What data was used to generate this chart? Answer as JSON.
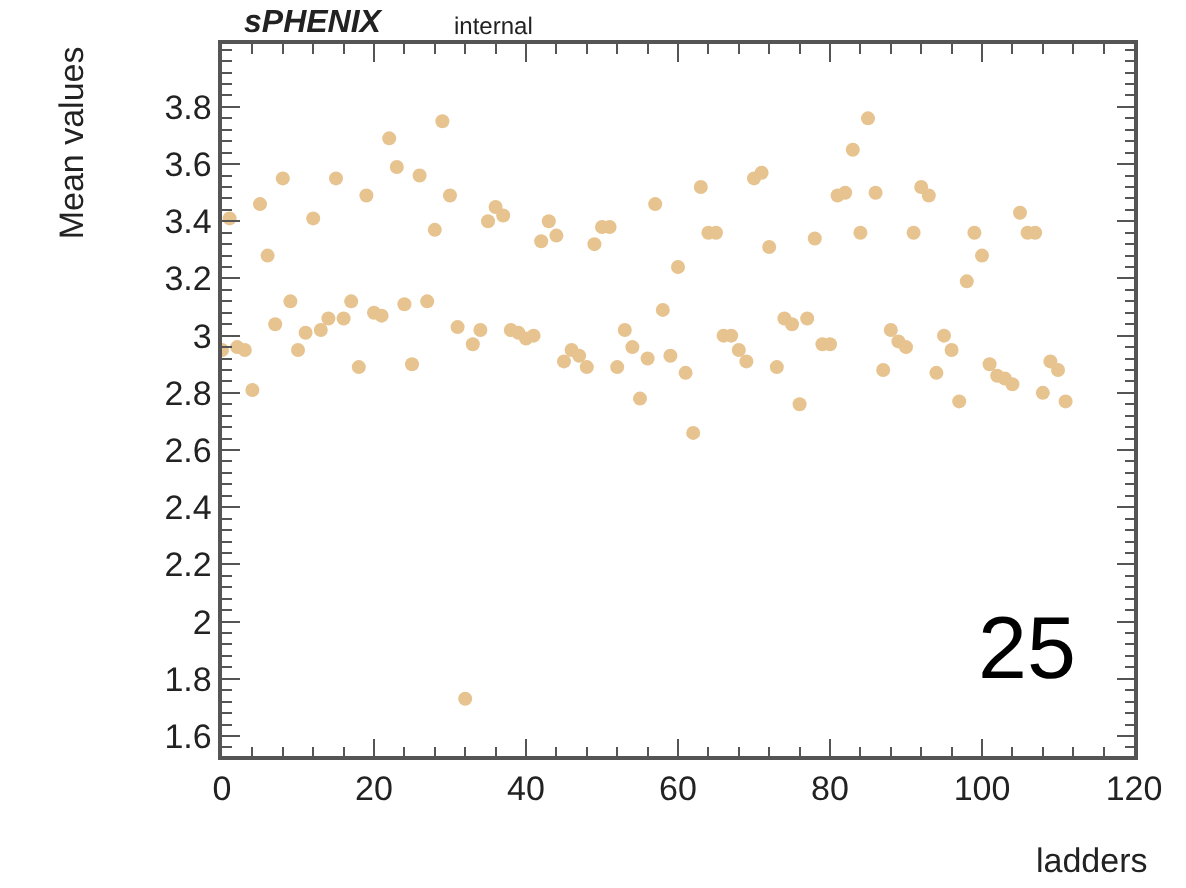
{
  "chart_data": {
    "type": "scatter",
    "title": "sPHENIX",
    "subtitle": "internal",
    "xlabel": "ladders",
    "ylabel": "Mean values",
    "annotations": [
      "25"
    ],
    "x": [
      0,
      1,
      2,
      3,
      4,
      5,
      6,
      7,
      8,
      9,
      10,
      11,
      12,
      13,
      14,
      15,
      16,
      17,
      18,
      19,
      20,
      21,
      22,
      23,
      24,
      25,
      26,
      27,
      28,
      29,
      30,
      31,
      32,
      33,
      34,
      35,
      36,
      37,
      38,
      39,
      40,
      41,
      42,
      43,
      44,
      45,
      46,
      47,
      48,
      49,
      50,
      51,
      52,
      53,
      54,
      55,
      56,
      57,
      58,
      59,
      60,
      61,
      62,
      63,
      64,
      65,
      66,
      67,
      68,
      69,
      70,
      71,
      72,
      73,
      74,
      75,
      76,
      77,
      78,
      79,
      80,
      81,
      82,
      83,
      84,
      85,
      86,
      87,
      88,
      89,
      90,
      91,
      92,
      93,
      94,
      95,
      96,
      97,
      98,
      99,
      100,
      101,
      102,
      103,
      104,
      105,
      106,
      107,
      108,
      109,
      110,
      111
    ],
    "series": [
      {
        "color": "#e6c38f",
        "values": [
          2.95,
          3.41,
          2.96,
          2.95,
          2.81,
          3.46,
          3.28,
          3.04,
          3.55,
          3.12,
          2.95,
          3.01,
          3.41,
          3.02,
          3.06,
          3.55,
          3.06,
          3.12,
          2.89,
          3.49,
          3.08,
          3.07,
          3.69,
          3.59,
          3.11,
          2.9,
          3.56,
          3.12,
          3.37,
          3.75,
          3.49,
          3.03,
          1.73,
          2.97,
          3.02,
          3.4,
          3.45,
          3.42,
          3.02,
          3.01,
          2.99,
          3.0,
          3.33,
          3.4,
          3.35,
          2.91,
          2.95,
          2.93,
          2.89,
          3.32,
          3.38,
          3.38,
          2.89,
          3.02,
          2.96,
          2.78,
          2.92,
          3.46,
          3.09,
          2.93,
          3.24,
          2.87,
          2.66,
          3.52,
          3.36,
          3.36,
          3.0,
          3.0,
          2.95,
          2.91,
          3.55,
          3.57,
          3.31,
          2.89,
          3.06,
          3.04,
          2.76,
          3.06,
          3.34,
          2.97,
          2.97,
          3.49,
          3.5,
          3.65,
          3.36,
          3.76,
          3.5,
          2.88,
          3.02,
          2.98,
          2.96,
          3.36,
          3.52,
          3.49,
          2.87,
          3.0,
          2.95,
          2.77,
          3.19,
          3.36,
          3.28,
          2.9,
          2.86,
          2.85,
          2.83,
          3.43,
          3.36,
          3.36,
          2.8,
          2.91,
          2.88,
          2.77
        ]
      }
    ],
    "xlim": [
      0,
      120
    ],
    "xticks": [
      0,
      20,
      40,
      60,
      80,
      100,
      120
    ],
    "ylim": [
      1.53,
      4.02
    ],
    "yticks": [
      1.6,
      1.8,
      2,
      2.2,
      2.4,
      2.6,
      2.8,
      3,
      3.2,
      3.4,
      3.6,
      3.8
    ],
    "marker": "circle"
  }
}
